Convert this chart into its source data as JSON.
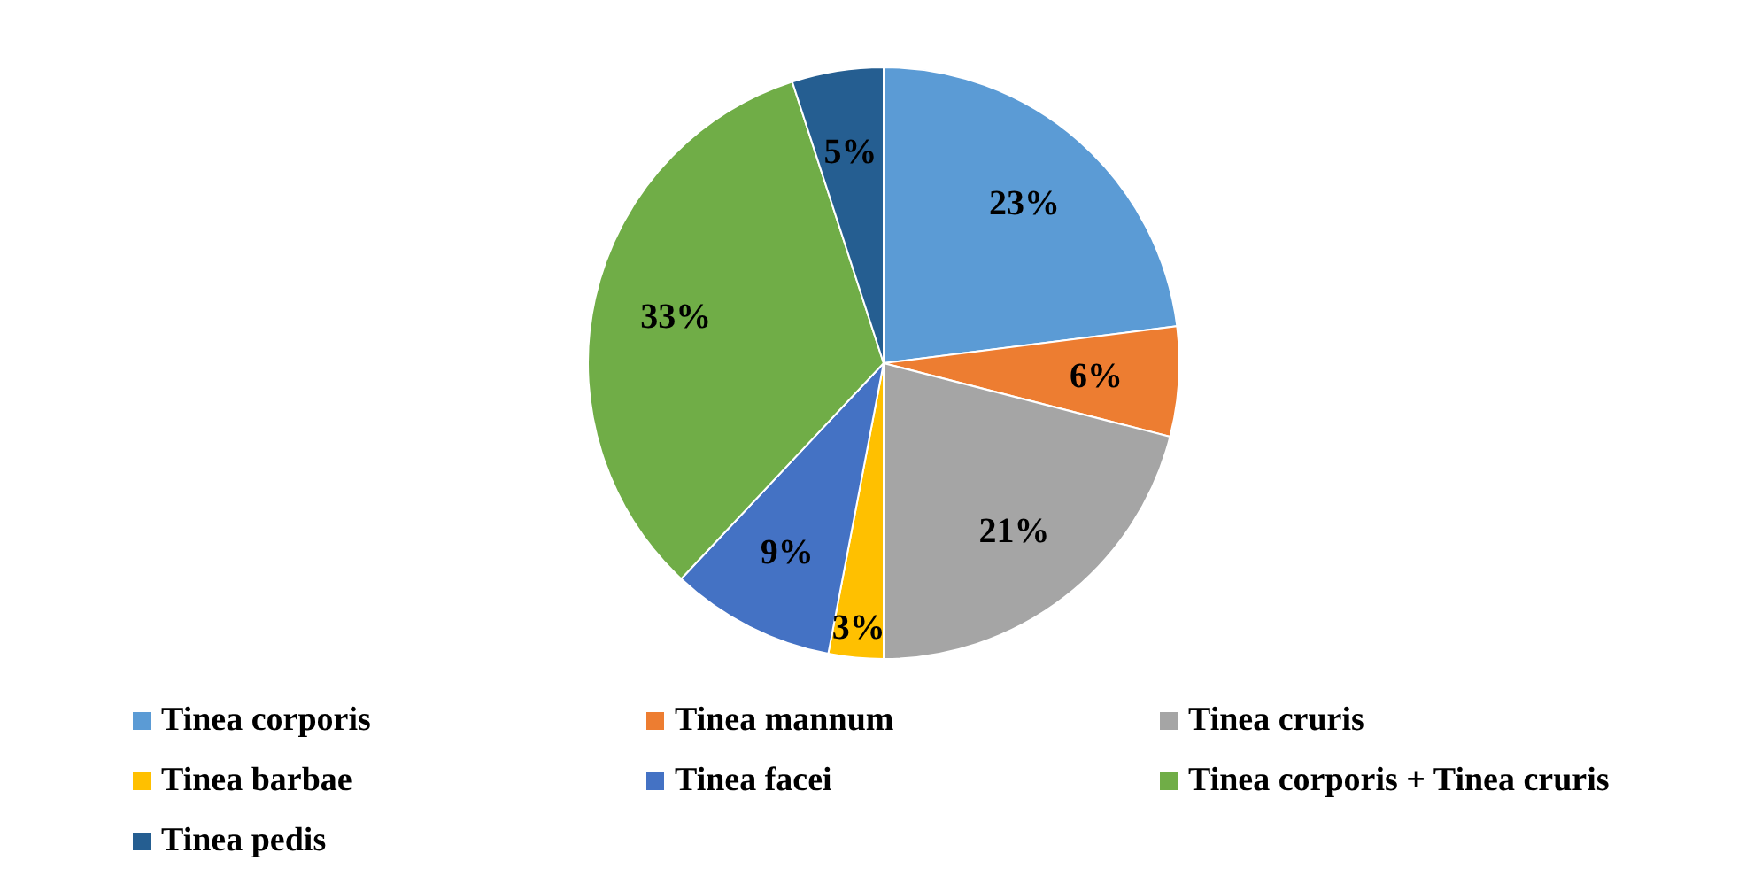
{
  "chart_data": {
    "type": "pie",
    "categories": [
      "Tinea corporis",
      "Tinea mannum",
      "Tinea cruris",
      "Tinea barbae",
      "Tinea facei",
      "Tinea corporis + Tinea cruris",
      "Tinea pedis"
    ],
    "values": [
      23,
      6,
      21,
      3,
      9,
      33,
      5
    ],
    "value_labels": [
      "23%",
      "6%",
      "21%",
      "3%",
      "9%",
      "33%",
      "5%"
    ],
    "colors": [
      "#5b9bd5",
      "#ed7d31",
      "#a5a5a5",
      "#ffc000",
      "#4472c4",
      "#70ad47",
      "#255e91"
    ],
    "legend": "bottom"
  }
}
